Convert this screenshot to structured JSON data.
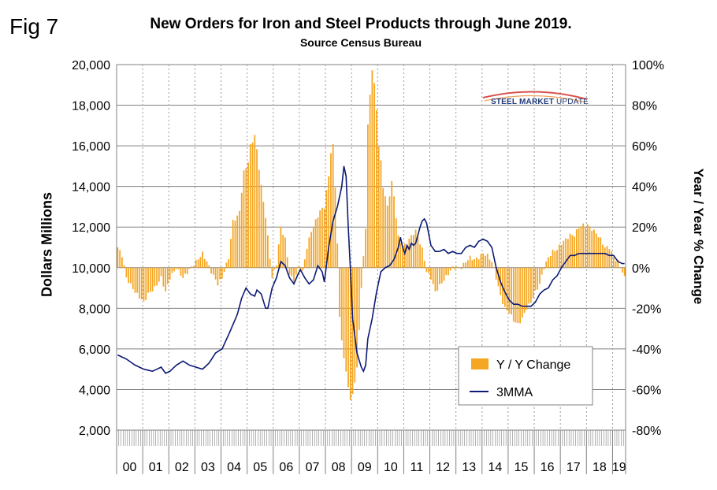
{
  "figure_label": "Fig 7",
  "logo": {
    "text_bold": "STEEL MARKET",
    "text_light": "UPDATE"
  },
  "colors": {
    "bars": "#F5A623",
    "line": "#0B1A74",
    "grid": "#808080"
  },
  "chart_data": {
    "type": "bar",
    "title": "New Orders for Iron and Steel Products through June 2019.",
    "subtitle": "Source Census Bureau",
    "ylabel": "Dollars Millions",
    "ylabel_right": "Year / Year % Change",
    "ylim": [
      2000,
      20000
    ],
    "y_ticks": [
      "2,000",
      "4,000",
      "6,000",
      "8,000",
      "10,000",
      "12,000",
      "14,000",
      "16,000",
      "18,000",
      "20,000"
    ],
    "ylim_right": [
      -80,
      100
    ],
    "y_ticks_right": [
      "-80%",
      "-60%",
      "-40%",
      "-20%",
      "0%",
      "20%",
      "40%",
      "60%",
      "80%",
      "100%"
    ],
    "categories": [
      "00",
      "01",
      "02",
      "03",
      "04",
      "05",
      "06",
      "07",
      "08",
      "09",
      "10",
      "11",
      "12",
      "13",
      "14",
      "15",
      "16",
      "17",
      "18",
      "19"
    ],
    "months": "Jan 2000 - Jun 2019",
    "legend_position": "bottom-right",
    "grid": "horizontal and dotted vertical by year",
    "series": [
      {
        "name": "Y / Y Change",
        "type": "bar",
        "axis": "right",
        "anchors": [
          [
            0,
            10
          ],
          [
            2,
            6
          ],
          [
            4,
            -5
          ],
          [
            8,
            -12
          ],
          [
            12,
            -17
          ],
          [
            14,
            -13
          ],
          [
            17,
            -10
          ],
          [
            20,
            -5
          ],
          [
            22,
            -12
          ],
          [
            24,
            -5
          ],
          [
            27,
            0
          ],
          [
            30,
            -5
          ],
          [
            33,
            -1
          ],
          [
            36,
            3
          ],
          [
            39,
            7
          ],
          [
            41,
            3
          ],
          [
            43,
            -2
          ],
          [
            46,
            -8
          ],
          [
            48,
            -5
          ],
          [
            51,
            5
          ],
          [
            53,
            23
          ],
          [
            55,
            25
          ],
          [
            56,
            28
          ],
          [
            58,
            47
          ],
          [
            60,
            52
          ],
          [
            61,
            60
          ],
          [
            63,
            65
          ],
          [
            64,
            58
          ],
          [
            66,
            40
          ],
          [
            68,
            25
          ],
          [
            71,
            -5
          ],
          [
            73,
            2
          ],
          [
            75,
            20
          ],
          [
            77,
            14
          ],
          [
            79,
            -3
          ],
          [
            81,
            -7
          ],
          [
            83,
            0
          ],
          [
            85,
            -2
          ],
          [
            87,
            10
          ],
          [
            89,
            18
          ],
          [
            91,
            23
          ],
          [
            93,
            28
          ],
          [
            95,
            30
          ],
          [
            97,
            45
          ],
          [
            98,
            57
          ],
          [
            99,
            60
          ],
          [
            100,
            40
          ],
          [
            101,
            12
          ],
          [
            102,
            -25
          ],
          [
            104,
            -45
          ],
          [
            106,
            -58
          ],
          [
            107,
            -66
          ],
          [
            108,
            -62
          ],
          [
            110,
            -50
          ],
          [
            111,
            -30
          ],
          [
            112,
            -10
          ],
          [
            114,
            20
          ],
          [
            115,
            70
          ],
          [
            116,
            85
          ],
          [
            117,
            98
          ],
          [
            118,
            90
          ],
          [
            119,
            78
          ],
          [
            120,
            60
          ],
          [
            121,
            52
          ],
          [
            122,
            40
          ],
          [
            124,
            30
          ],
          [
            126,
            42
          ],
          [
            127,
            35
          ],
          [
            129,
            15
          ],
          [
            131,
            10
          ],
          [
            133,
            12
          ],
          [
            134,
            14
          ],
          [
            136,
            17
          ],
          [
            137,
            18
          ],
          [
            138,
            15
          ],
          [
            140,
            9
          ],
          [
            141,
            4
          ],
          [
            142,
            -2
          ],
          [
            144,
            -5
          ],
          [
            146,
            -12
          ],
          [
            148,
            -9
          ],
          [
            150,
            -6
          ],
          [
            152,
            -3
          ],
          [
            154,
            0
          ],
          [
            156,
            0
          ],
          [
            158,
            0
          ],
          [
            160,
            3
          ],
          [
            162,
            5
          ],
          [
            164,
            4
          ],
          [
            166,
            5
          ],
          [
            168,
            7
          ],
          [
            170,
            6
          ],
          [
            172,
            3
          ],
          [
            174,
            -5
          ],
          [
            176,
            -14
          ],
          [
            178,
            -20
          ],
          [
            180,
            -22
          ],
          [
            182,
            -26
          ],
          [
            184,
            -28
          ],
          [
            186,
            -25
          ],
          [
            188,
            -20
          ],
          [
            190,
            -17
          ],
          [
            192,
            -12
          ],
          [
            194,
            -8
          ],
          [
            196,
            0
          ],
          [
            198,
            5
          ],
          [
            200,
            8
          ],
          [
            202,
            9
          ],
          [
            204,
            12
          ],
          [
            206,
            14
          ],
          [
            208,
            16
          ],
          [
            210,
            16
          ],
          [
            212,
            20
          ],
          [
            214,
            21
          ],
          [
            216,
            21
          ],
          [
            218,
            19
          ],
          [
            220,
            17
          ],
          [
            222,
            14
          ],
          [
            224,
            10
          ],
          [
            226,
            10
          ],
          [
            228,
            5
          ],
          [
            230,
            3
          ],
          [
            232,
            -2
          ],
          [
            233,
            -5
          ]
        ]
      },
      {
        "name": "3MMA",
        "type": "line",
        "axis": "left",
        "anchors": [
          [
            0,
            5700
          ],
          [
            4,
            5500
          ],
          [
            8,
            5200
          ],
          [
            12,
            5000
          ],
          [
            16,
            4900
          ],
          [
            20,
            5100
          ],
          [
            22,
            4800
          ],
          [
            24,
            4900
          ],
          [
            27,
            5200
          ],
          [
            30,
            5400
          ],
          [
            33,
            5200
          ],
          [
            36,
            5100
          ],
          [
            39,
            5000
          ],
          [
            42,
            5300
          ],
          [
            45,
            5800
          ],
          [
            48,
            6000
          ],
          [
            51,
            6700
          ],
          [
            53,
            7200
          ],
          [
            55,
            7700
          ],
          [
            57,
            8500
          ],
          [
            59,
            9000
          ],
          [
            61,
            8700
          ],
          [
            63,
            8600
          ],
          [
            64,
            8900
          ],
          [
            66,
            8700
          ],
          [
            68,
            8000
          ],
          [
            69,
            8000
          ],
          [
            71,
            9000
          ],
          [
            73,
            9500
          ],
          [
            75,
            10300
          ],
          [
            77,
            10100
          ],
          [
            79,
            9500
          ],
          [
            81,
            9200
          ],
          [
            83,
            9700
          ],
          [
            84,
            9900
          ],
          [
            86,
            9500
          ],
          [
            88,
            9200
          ],
          [
            90,
            9400
          ],
          [
            92,
            10100
          ],
          [
            94,
            9800
          ],
          [
            95,
            9300
          ],
          [
            97,
            11000
          ],
          [
            99,
            12300
          ],
          [
            101,
            13000
          ],
          [
            103,
            14000
          ],
          [
            104,
            15000
          ],
          [
            105,
            14500
          ],
          [
            106,
            12000
          ],
          [
            107,
            9900
          ],
          [
            108,
            7500
          ],
          [
            110,
            5800
          ],
          [
            112,
            5100
          ],
          [
            113,
            4900
          ],
          [
            114,
            5200
          ],
          [
            115,
            6500
          ],
          [
            116,
            7000
          ],
          [
            117,
            7500
          ],
          [
            119,
            8800
          ],
          [
            121,
            9800
          ],
          [
            123,
            10000
          ],
          [
            125,
            10100
          ],
          [
            127,
            10400
          ],
          [
            129,
            11000
          ],
          [
            130,
            11500
          ],
          [
            131,
            11000
          ],
          [
            132,
            10700
          ],
          [
            133,
            11100
          ],
          [
            134,
            10900
          ],
          [
            135,
            11200
          ],
          [
            136,
            11100
          ],
          [
            137,
            11200
          ],
          [
            138,
            11600
          ],
          [
            139,
            12000
          ],
          [
            140,
            12300
          ],
          [
            141,
            12400
          ],
          [
            142,
            12200
          ],
          [
            144,
            11100
          ],
          [
            146,
            10800
          ],
          [
            148,
            10800
          ],
          [
            150,
            10900
          ],
          [
            152,
            10700
          ],
          [
            154,
            10800
          ],
          [
            156,
            10700
          ],
          [
            158,
            10700
          ],
          [
            160,
            11000
          ],
          [
            162,
            11100
          ],
          [
            164,
            11000
          ],
          [
            166,
            11300
          ],
          [
            168,
            11400
          ],
          [
            170,
            11300
          ],
          [
            172,
            11000
          ],
          [
            174,
            10000
          ],
          [
            176,
            9300
          ],
          [
            178,
            8800
          ],
          [
            180,
            8400
          ],
          [
            182,
            8200
          ],
          [
            184,
            8200
          ],
          [
            186,
            8100
          ],
          [
            188,
            8100
          ],
          [
            190,
            8100
          ],
          [
            192,
            8300
          ],
          [
            194,
            8700
          ],
          [
            196,
            8900
          ],
          [
            198,
            9000
          ],
          [
            200,
            9400
          ],
          [
            202,
            9600
          ],
          [
            204,
            10000
          ],
          [
            206,
            10300
          ],
          [
            208,
            10600
          ],
          [
            210,
            10600
          ],
          [
            212,
            10700
          ],
          [
            214,
            10700
          ],
          [
            216,
            10700
          ],
          [
            218,
            10700
          ],
          [
            220,
            10700
          ],
          [
            222,
            10700
          ],
          [
            224,
            10700
          ],
          [
            226,
            10600
          ],
          [
            228,
            10600
          ],
          [
            230,
            10300
          ],
          [
            232,
            10200
          ],
          [
            233,
            10200
          ]
        ]
      }
    ]
  }
}
